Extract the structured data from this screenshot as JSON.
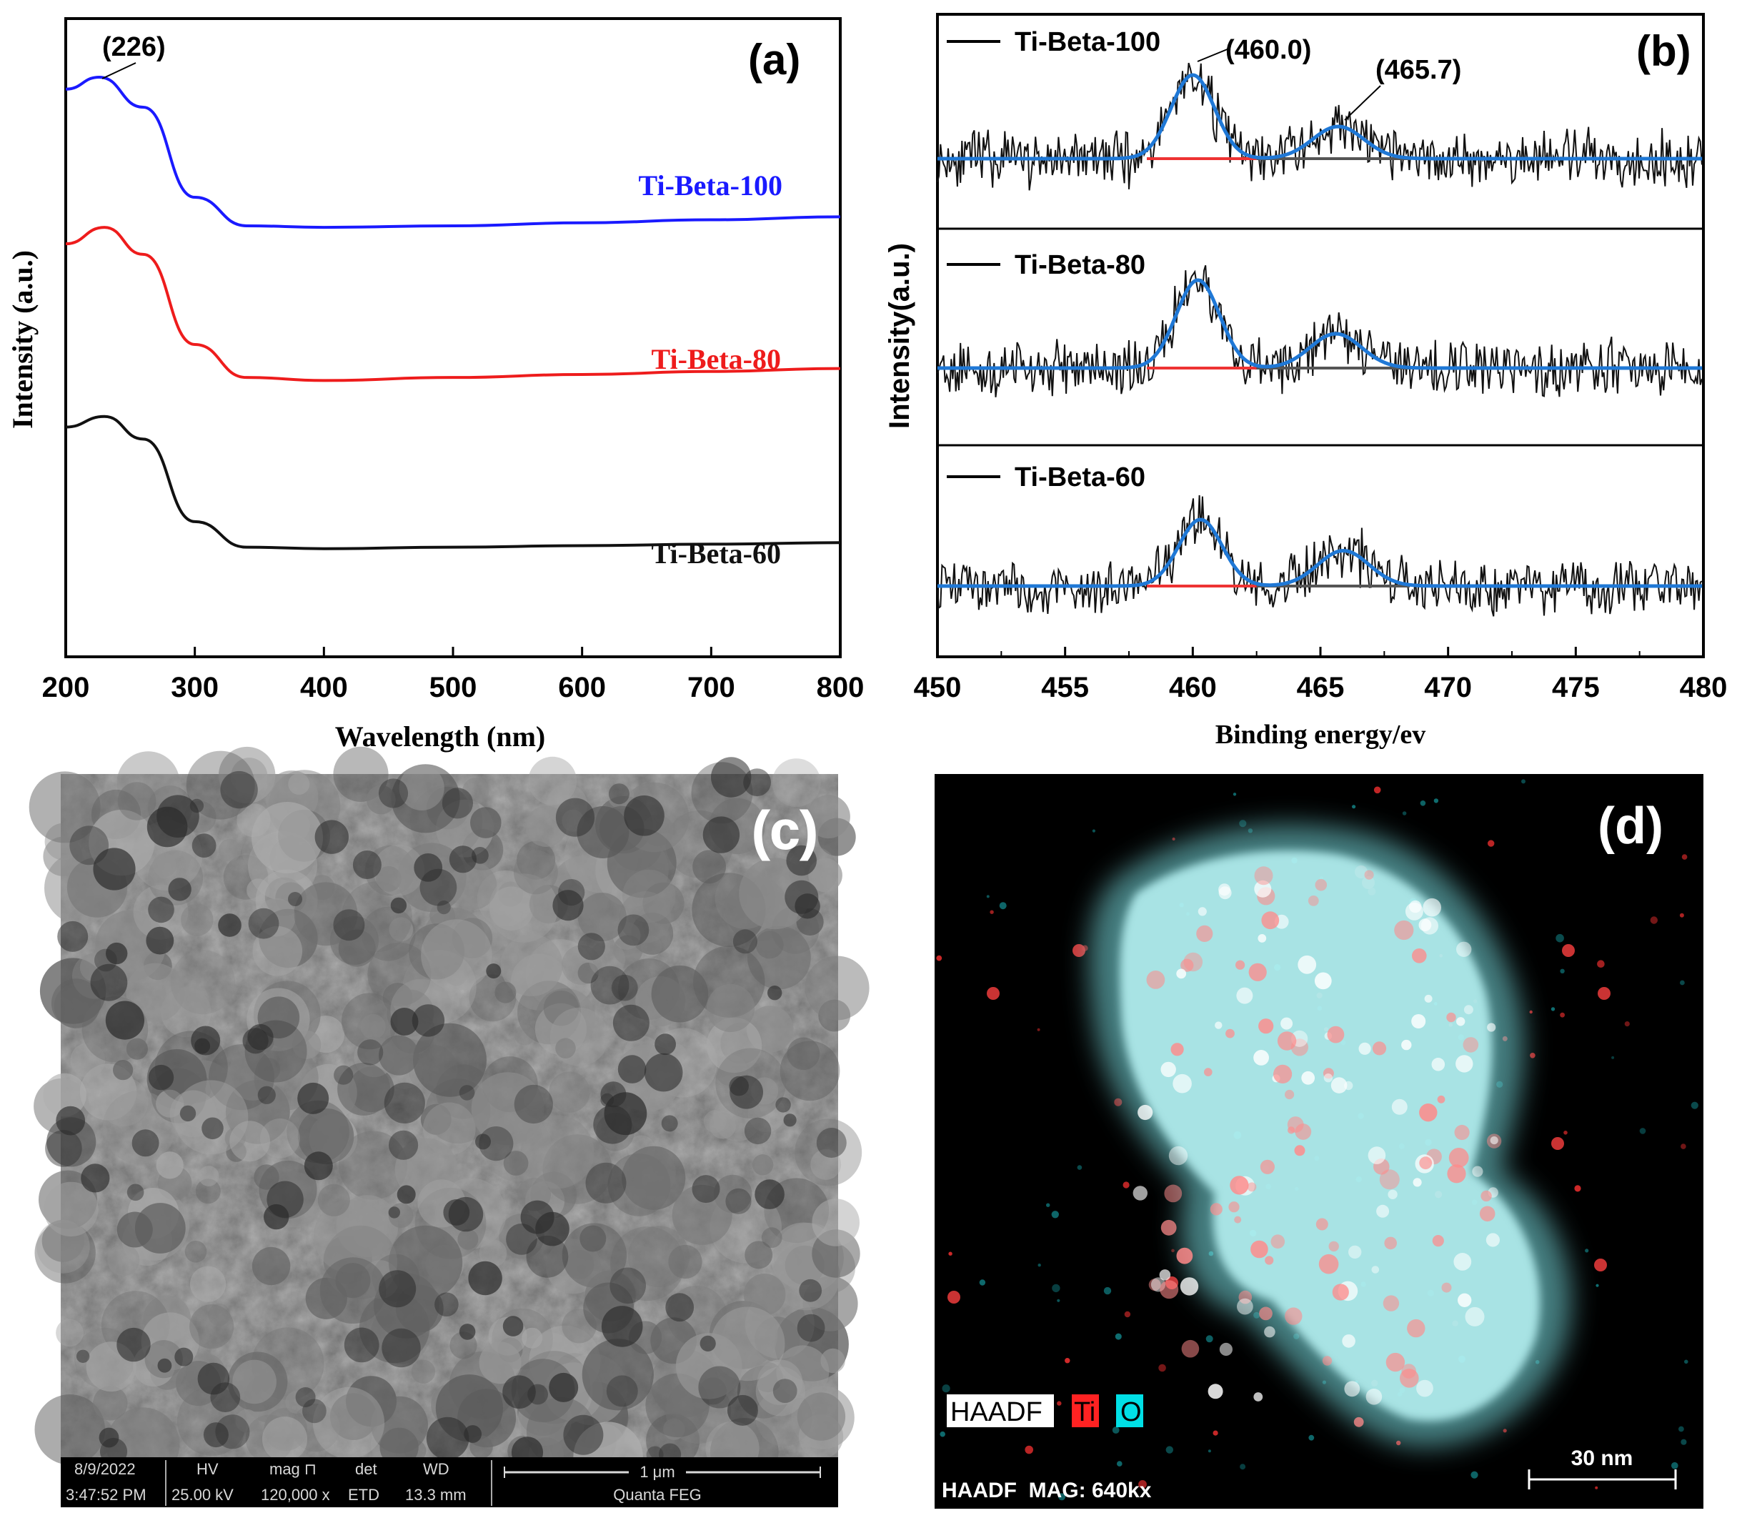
{
  "chart_data": [
    {
      "panel": "(a)",
      "type": "line",
      "xlabel": "Wavelength (nm)",
      "ylabel": "Intensity (a.u.)",
      "xlim": [
        200,
        800
      ],
      "xticks": [
        "200",
        "300",
        "400",
        "500",
        "600",
        "700",
        "800"
      ],
      "yticks_shown": false,
      "annotation": "(226)",
      "series": [
        {
          "name": "Ti-Beta-100",
          "color": "#1a1aff",
          "x": [
            200,
            226,
            260,
            300,
            340,
            400,
            500,
            600,
            700,
            800
          ],
          "y": [
            2.28,
            2.36,
            2.16,
            1.56,
            1.37,
            1.36,
            1.37,
            1.39,
            1.41,
            1.43
          ]
        },
        {
          "name": "Ti-Beta-80",
          "color": "#ee1c1c",
          "x": [
            200,
            230,
            260,
            300,
            340,
            400,
            500,
            600,
            700,
            800
          ],
          "y": [
            1.25,
            1.36,
            1.18,
            0.58,
            0.36,
            0.34,
            0.36,
            0.38,
            0.4,
            0.42
          ]
        },
        {
          "name": "Ti-Beta-60",
          "color": "#111111",
          "x": [
            200,
            230,
            260,
            300,
            340,
            400,
            500,
            600,
            700,
            800
          ],
          "y": [
            0.03,
            0.1,
            -0.05,
            -0.6,
            -0.77,
            -0.78,
            -0.77,
            -0.76,
            -0.75,
            -0.74
          ]
        }
      ]
    },
    {
      "panel": "(b)",
      "type": "line",
      "xlabel": "Binding energy/ev",
      "ylabel": "Intensity(a.u.)",
      "xlim": [
        450,
        480
      ],
      "xticks": [
        "450",
        "455",
        "460",
        "465",
        "470",
        "475",
        "480"
      ],
      "fit_color": "#1f78d6",
      "subpanels": [
        {
          "name": "Ti-Beta-100",
          "peaks": [
            {
              "center": 460.0,
              "height": 0.78,
              "label": "(460.0)"
            },
            {
              "center": 465.7,
              "height": 0.3,
              "label": "(465.7)"
            }
          ]
        },
        {
          "name": "Ti-Beta-80",
          "peaks": [
            {
              "center": 460.2,
              "height": 0.82
            },
            {
              "center": 465.6,
              "height": 0.32
            }
          ]
        },
        {
          "name": "Ti-Beta-60",
          "peaks": [
            {
              "center": 460.3,
              "height": 0.62
            },
            {
              "center": 465.9,
              "height": 0.33
            }
          ]
        }
      ]
    }
  ],
  "panel_c": {
    "label": "(c)",
    "infobar": {
      "date": "8/9/2022",
      "time": "3:47:52 PM",
      "hv_head": "HV",
      "hv": "25.00 kV",
      "mag_head": "mag ⊓",
      "mag": "120,000 x",
      "det_head": "det",
      "det": "ETD",
      "wd_head": "WD",
      "wd": "13.3 mm",
      "scale": "1 μm",
      "instrument": "Quanta FEG"
    }
  },
  "panel_d": {
    "label": "(d)",
    "legend": [
      "HAADF",
      "Ti",
      "O"
    ],
    "legend_colors": [
      "#ffffff",
      "#ff2222",
      "#00e0e6"
    ],
    "scale": "30 nm",
    "footer": "HAADF  MAG: 640kx"
  }
}
